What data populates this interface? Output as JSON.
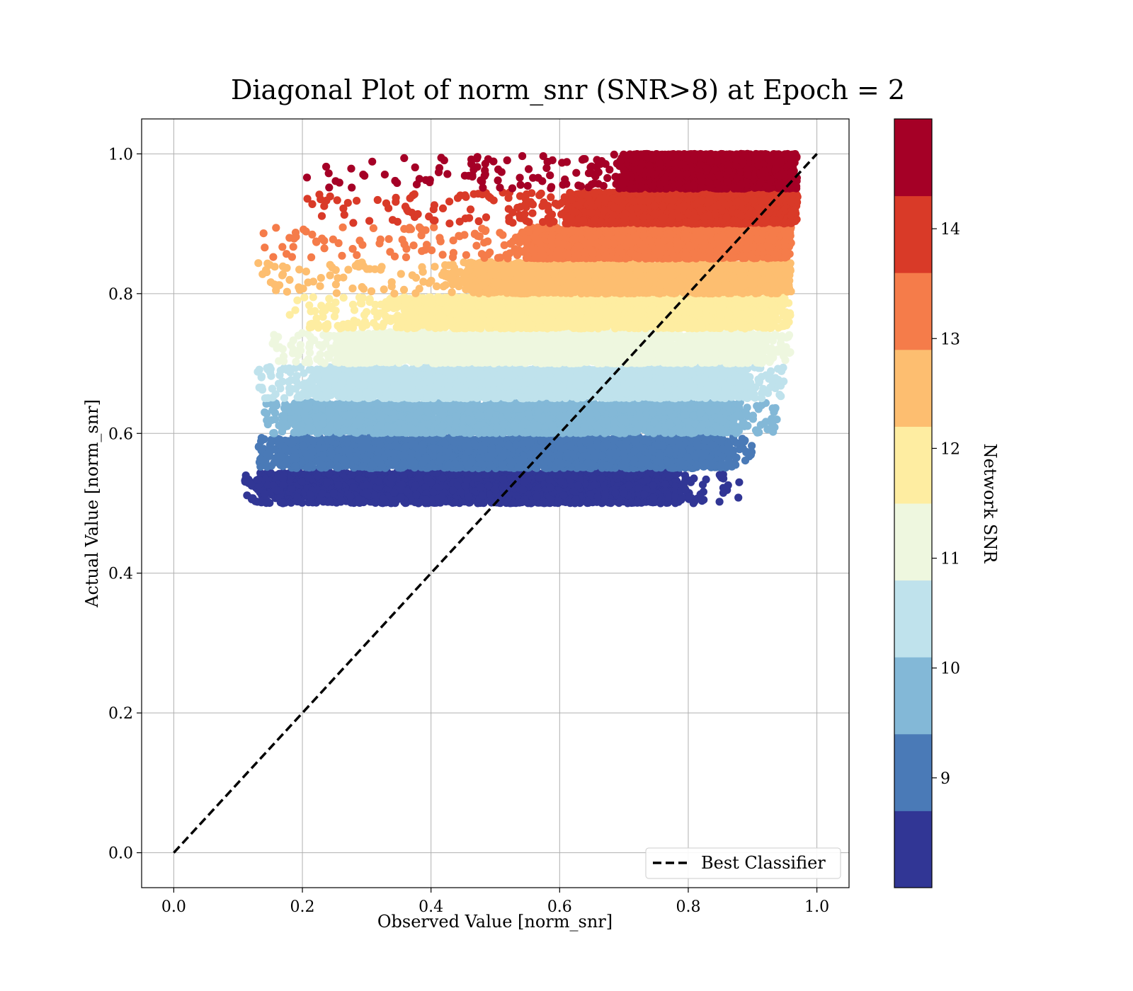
{
  "chart_data": {
    "type": "scatter",
    "title": "Diagonal Plot of norm_snr (SNR>8) at Epoch = 2",
    "xlabel": "Observed Value [norm_snr]",
    "ylabel": "Actual Value [norm_snr]",
    "xlim": [
      -0.05,
      1.05
    ],
    "ylim": [
      -0.05,
      1.05
    ],
    "grid": true,
    "xticks": [
      0.0,
      0.2,
      0.4,
      0.6,
      0.8,
      1.0
    ],
    "xtick_labels": [
      "0.0",
      "0.2",
      "0.4",
      "0.6",
      "0.8",
      "1.0"
    ],
    "yticks": [
      0.0,
      0.2,
      0.4,
      0.6,
      0.8,
      1.0
    ],
    "ytick_labels": [
      "0.0",
      "0.2",
      "0.4",
      "0.6",
      "0.8",
      "1.0"
    ],
    "reference_line": {
      "name": "Best Classifier",
      "style": "dashed",
      "color": "#000000",
      "x": [
        0.0,
        1.0
      ],
      "y": [
        0.0,
        1.0
      ]
    },
    "legend": {
      "location": "lower-right",
      "entries": [
        "Best Classifier"
      ]
    },
    "colorbar": {
      "label": "Network SNR",
      "range": [
        8.0,
        15.0
      ],
      "ticks": [
        9,
        10,
        11,
        12,
        13,
        14
      ],
      "tick_labels": [
        "9",
        "10",
        "11",
        "12",
        "13",
        "14"
      ],
      "colors": [
        "#313695",
        "#4a7ab7",
        "#83b8d7",
        "#bfe2ec",
        "#eef7df",
        "#feeda1",
        "#fdbe70",
        "#f57c4a",
        "#d93a28",
        "#a50026"
      ]
    },
    "bands": [
      {
        "snr_level": 8.35,
        "color": "#313695",
        "y_range": [
          0.5,
          0.545
        ],
        "x_core": [
          0.17,
          0.78
        ],
        "x_outliers": [
          0.11,
          0.88
        ]
      },
      {
        "snr_level": 9.05,
        "color": "#4a7ab7",
        "y_range": [
          0.55,
          0.595
        ],
        "x_core": [
          0.19,
          0.85
        ],
        "x_outliers": [
          0.13,
          0.9
        ]
      },
      {
        "snr_level": 9.75,
        "color": "#83b8d7",
        "y_range": [
          0.6,
          0.645
        ],
        "x_core": [
          0.21,
          0.87
        ],
        "x_outliers": [
          0.14,
          0.94
        ]
      },
      {
        "snr_level": 10.45,
        "color": "#bfe2ec",
        "y_range": [
          0.65,
          0.695
        ],
        "x_core": [
          0.24,
          0.89
        ],
        "x_outliers": [
          0.13,
          0.95
        ]
      },
      {
        "snr_level": 11.15,
        "color": "#eef7df",
        "y_range": [
          0.7,
          0.745
        ],
        "x_core": [
          0.27,
          0.91
        ],
        "x_outliers": [
          0.15,
          0.96
        ]
      },
      {
        "snr_level": 11.85,
        "color": "#feeda1",
        "y_range": [
          0.75,
          0.795
        ],
        "x_core": [
          0.36,
          0.93
        ],
        "x_outliers": [
          0.18,
          0.96
        ]
      },
      {
        "snr_level": 12.55,
        "color": "#fdbe70",
        "y_range": [
          0.8,
          0.845
        ],
        "x_core": [
          0.46,
          0.94
        ],
        "x_outliers": [
          0.13,
          0.96
        ]
      },
      {
        "snr_level": 13.25,
        "color": "#f57c4a",
        "y_range": [
          0.85,
          0.895
        ],
        "x_core": [
          0.55,
          0.95
        ],
        "x_outliers": [
          0.13,
          0.96
        ]
      },
      {
        "snr_level": 13.95,
        "color": "#d93a28",
        "y_range": [
          0.9,
          0.945
        ],
        "x_core": [
          0.62,
          0.96
        ],
        "x_outliers": [
          0.2,
          0.97
        ]
      },
      {
        "snr_level": 14.65,
        "color": "#a50026",
        "y_range": [
          0.95,
          1.0
        ],
        "x_core": [
          0.7,
          0.96
        ],
        "x_outliers": [
          0.2,
          0.97
        ]
      }
    ]
  }
}
